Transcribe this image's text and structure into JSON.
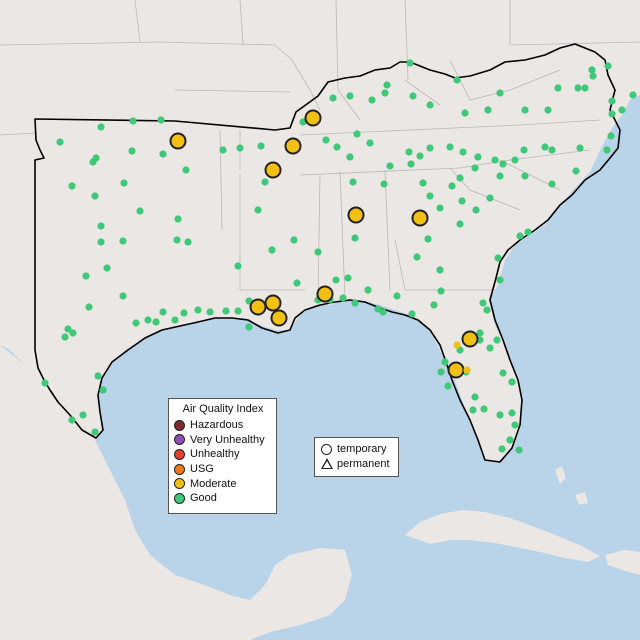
{
  "legend": {
    "title": "Air Quality Index",
    "categories": [
      {
        "label": "Hazardous",
        "color": "#7e2a2a"
      },
      {
        "label": "Very Unhealthy",
        "color": "#8e4fb0"
      },
      {
        "label": "Unhealthy",
        "color": "#e0412f"
      },
      {
        "label": "USG",
        "color": "#ee7a1c"
      },
      {
        "label": "Moderate",
        "color": "#f2c012"
      },
      {
        "label": "Good",
        "color": "#3ec878"
      }
    ],
    "monitor_types": [
      {
        "label": "temporary",
        "icon": "circle-icon"
      },
      {
        "label": "permanent",
        "icon": "triangle-icon"
      }
    ]
  },
  "colors": {
    "land": "#ebe7e4",
    "water": "#b9d3e8",
    "region_outline": "#000000",
    "state_border": "#b8b8b8"
  },
  "monitors": [
    {
      "id": "mod-1",
      "category": "Moderate",
      "type": "temporary",
      "size": "large"
    },
    {
      "id": "mod-2",
      "category": "Moderate",
      "type": "temporary",
      "size": "large"
    },
    {
      "id": "mod-3",
      "category": "Moderate",
      "type": "temporary",
      "size": "large"
    },
    {
      "id": "mod-4",
      "category": "Moderate",
      "type": "temporary",
      "size": "large"
    },
    {
      "id": "mod-5",
      "category": "Moderate",
      "type": "temporary",
      "size": "large"
    },
    {
      "id": "mod-6",
      "category": "Moderate",
      "type": "temporary",
      "size": "large"
    },
    {
      "id": "mod-7",
      "category": "Moderate",
      "type": "temporary",
      "size": "large"
    },
    {
      "id": "mod-8",
      "category": "Moderate",
      "type": "temporary",
      "size": "large"
    },
    {
      "id": "mod-9",
      "category": "Moderate",
      "type": "temporary",
      "size": "large"
    },
    {
      "id": "mod-10",
      "category": "Moderate",
      "type": "temporary",
      "size": "large"
    },
    {
      "id": "mod-11",
      "category": "Moderate",
      "type": "temporary",
      "size": "large"
    },
    {
      "id": "mod-12",
      "category": "Moderate",
      "type": "temporary",
      "size": "large"
    },
    {
      "id": "mod-13",
      "category": "Moderate",
      "type": "temporary",
      "size": "small"
    },
    {
      "id": "mod-14",
      "category": "Moderate",
      "type": "temporary",
      "size": "small"
    }
  ]
}
